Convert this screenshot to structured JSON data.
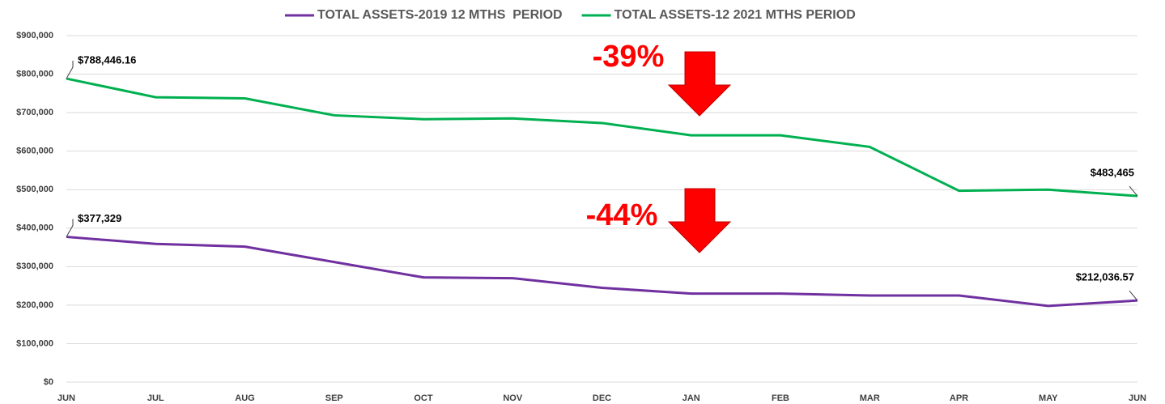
{
  "chart_data": {
    "type": "line",
    "categories": [
      "JUN",
      "JUL",
      "AUG",
      "SEP",
      "OCT",
      "NOV",
      "DEC",
      "JAN",
      "FEB",
      "MAR",
      "APR",
      "MAY",
      "JUN"
    ],
    "series": [
      {
        "name": "TOTAL ASSETS-2019 12 MTHS  PERIOD",
        "color": "#7030a0",
        "values": [
          377329,
          359000,
          352000,
          312000,
          272000,
          270000,
          245000,
          230000,
          230000,
          225000,
          225000,
          198000,
          212036.57
        ],
        "value_labels": [
          "$377,329",
          null,
          null,
          null,
          null,
          null,
          null,
          null,
          null,
          null,
          null,
          null,
          "$212,036.57"
        ]
      },
      {
        "name": "TOTAL ASSETS-12 2021 MTHS PERIOD",
        "color": "#00b050",
        "values": [
          788446.16,
          740000,
          737000,
          693000,
          683000,
          685000,
          673000,
          641000,
          641000,
          611000,
          497000,
          500000,
          483465
        ],
        "value_labels": [
          "$788,446.16",
          null,
          null,
          null,
          null,
          null,
          null,
          null,
          null,
          null,
          null,
          null,
          "$483,465"
        ]
      }
    ],
    "annotations": [
      "-39%",
      "-44%"
    ],
    "ylim": [
      0,
      900000
    ],
    "yticks": [
      {
        "value": 0,
        "label": "$0"
      },
      {
        "value": 100000,
        "label": "$100,000"
      },
      {
        "value": 200000,
        "label": "$200,000"
      },
      {
        "value": 300000,
        "label": "$300,000"
      },
      {
        "value": 400000,
        "label": "$400,000"
      },
      {
        "value": 500000,
        "label": "$500,000"
      },
      {
        "value": 600000,
        "label": "$600,000"
      },
      {
        "value": 700000,
        "label": "$700,000"
      },
      {
        "value": 800000,
        "label": "$800,000"
      },
      {
        "value": 900000,
        "label": "$900,000"
      }
    ],
    "grid": true,
    "legend": "top"
  }
}
